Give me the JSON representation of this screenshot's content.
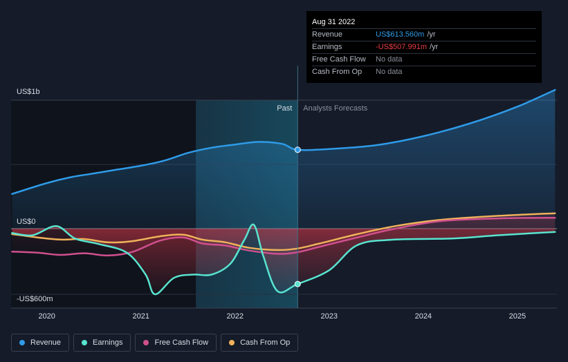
{
  "chart_data": {
    "type": "area",
    "y_top_label": "US$1b",
    "y_zero_label": "US$0",
    "y_bottom_label": "-US$600m",
    "ylim": [
      -600,
      1100
    ],
    "xlim": [
      "2019-08",
      "2025-06"
    ],
    "x_ticks": [
      {
        "label": "2020",
        "t": 2020.0
      },
      {
        "label": "2021",
        "t": 2021.0
      },
      {
        "label": "2022",
        "t": 2022.0
      },
      {
        "label": "2023",
        "t": 2023.0
      },
      {
        "label": "2024",
        "t": 2024.0
      },
      {
        "label": "2025",
        "t": 2025.0
      }
    ],
    "past_label": "Past",
    "forecast_label": "Analysts Forecasts",
    "highlight_start": "2021-08",
    "divider_date": "2022-08-31",
    "series": [
      {
        "name": "Revenue",
        "color": "#2f9be8",
        "points": [
          [
            2019.63,
            270
          ],
          [
            2020.0,
            355
          ],
          [
            2020.25,
            400
          ],
          [
            2020.5,
            430
          ],
          [
            2020.75,
            460
          ],
          [
            2021.0,
            490
          ],
          [
            2021.25,
            530
          ],
          [
            2021.5,
            590
          ],
          [
            2021.75,
            630
          ],
          [
            2022.0,
            655
          ],
          [
            2022.25,
            675
          ],
          [
            2022.5,
            660
          ],
          [
            2022.66,
            614
          ],
          [
            2023.0,
            620
          ],
          [
            2023.5,
            650
          ],
          [
            2024.0,
            720
          ],
          [
            2024.5,
            820
          ],
          [
            2025.0,
            950
          ],
          [
            2025.4,
            1080
          ]
        ]
      },
      {
        "name": "Earnings",
        "color": "#58e4d0",
        "points": [
          [
            2019.63,
            -40
          ],
          [
            2019.85,
            -60
          ],
          [
            2020.1,
            20
          ],
          [
            2020.3,
            -90
          ],
          [
            2020.55,
            -140
          ],
          [
            2020.85,
            -220
          ],
          [
            2021.05,
            -420
          ],
          [
            2021.15,
            -600
          ],
          [
            2021.35,
            -450
          ],
          [
            2021.55,
            -420
          ],
          [
            2021.75,
            -420
          ],
          [
            2021.95,
            -320
          ],
          [
            2022.1,
            -100
          ],
          [
            2022.2,
            30
          ],
          [
            2022.3,
            -250
          ],
          [
            2022.45,
            -570
          ],
          [
            2022.66,
            -508
          ],
          [
            2023.0,
            -380
          ],
          [
            2023.3,
            -150
          ],
          [
            2023.7,
            -100
          ],
          [
            2024.3,
            -90
          ],
          [
            2024.8,
            -60
          ],
          [
            2025.4,
            -30
          ]
        ]
      },
      {
        "name": "Free Cash Flow",
        "color": "#d0508e",
        "points": [
          [
            2019.63,
            -210
          ],
          [
            2019.9,
            -220
          ],
          [
            2020.15,
            -240
          ],
          [
            2020.4,
            -225
          ],
          [
            2020.65,
            -245
          ],
          [
            2020.9,
            -215
          ],
          [
            2021.2,
            -110
          ],
          [
            2021.45,
            -80
          ],
          [
            2021.65,
            -135
          ],
          [
            2021.9,
            -155
          ],
          [
            2022.15,
            -200
          ],
          [
            2022.45,
            -230
          ],
          [
            2022.66,
            -216
          ],
          [
            2022.9,
            -165
          ],
          [
            2023.3,
            -80
          ],
          [
            2023.7,
            0
          ],
          [
            2024.2,
            60
          ],
          [
            2024.8,
            80
          ],
          [
            2025.4,
            85
          ]
        ]
      },
      {
        "name": "Cash From Op",
        "color": "#f0b25b",
        "points": [
          [
            2019.63,
            -50
          ],
          [
            2019.9,
            -80
          ],
          [
            2020.15,
            -100
          ],
          [
            2020.4,
            -95
          ],
          [
            2020.65,
            -125
          ],
          [
            2020.9,
            -115
          ],
          [
            2021.2,
            -70
          ],
          [
            2021.45,
            -55
          ],
          [
            2021.65,
            -100
          ],
          [
            2021.9,
            -125
          ],
          [
            2022.15,
            -175
          ],
          [
            2022.45,
            -195
          ],
          [
            2022.66,
            -182
          ],
          [
            2022.9,
            -135
          ],
          [
            2023.3,
            -50
          ],
          [
            2023.7,
            20
          ],
          [
            2024.2,
            70
          ],
          [
            2024.8,
            100
          ],
          [
            2025.4,
            120
          ]
        ]
      }
    ]
  },
  "tooltip": {
    "date": "Aug 31 2022",
    "rows": [
      {
        "label": "Revenue",
        "value": "US$613.560m",
        "unit": "/yr"
      },
      {
        "label": "Earnings",
        "value": "-US$507.991m",
        "unit": "/yr"
      },
      {
        "label": "Free Cash Flow",
        "value": "No data",
        "unit": ""
      },
      {
        "label": "Cash From Op",
        "value": "No data",
        "unit": ""
      }
    ]
  },
  "legend": [
    {
      "label": "Revenue",
      "color": "#2f9be8"
    },
    {
      "label": "Earnings",
      "color": "#58e4d0"
    },
    {
      "label": "Free Cash Flow",
      "color": "#d0508e"
    },
    {
      "label": "Cash From Op",
      "color": "#f0b25b"
    }
  ]
}
